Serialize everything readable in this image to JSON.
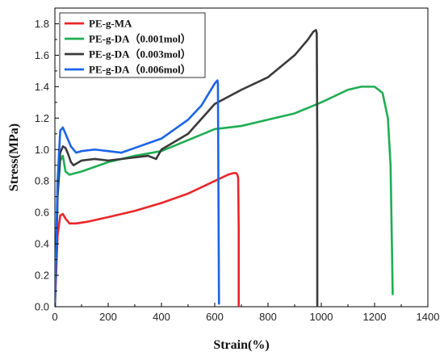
{
  "chart_data": {
    "type": "line",
    "xlabel": "Strain(%)",
    "ylabel": "Stress(MPa)",
    "xlim": [
      0,
      1400
    ],
    "ylim": [
      0.0,
      1.9
    ],
    "xticks": [
      0,
      200,
      400,
      600,
      800,
      1000,
      1200,
      1400
    ],
    "yticks": [
      0.0,
      0.2,
      0.4,
      0.6,
      0.8,
      1.0,
      1.2,
      1.4,
      1.6,
      1.8
    ],
    "grid": false,
    "legend_position": "top-left",
    "series": [
      {
        "name": "PE-g-MA",
        "color": "#e8262a",
        "x": [
          0,
          10,
          20,
          30,
          40,
          55,
          80,
          120,
          200,
          300,
          400,
          500,
          600,
          650,
          670,
          680,
          685,
          688,
          690,
          690
        ],
        "y": [
          0.0,
          0.45,
          0.58,
          0.59,
          0.56,
          0.53,
          0.53,
          0.54,
          0.57,
          0.61,
          0.66,
          0.72,
          0.8,
          0.84,
          0.85,
          0.85,
          0.84,
          0.82,
          0.5,
          0.0
        ]
      },
      {
        "name": "PE-g-DA（0.001mol）",
        "color": "#1fad52",
        "x": [
          0,
          10,
          20,
          30,
          40,
          55,
          100,
          200,
          300,
          400,
          500,
          600,
          700,
          800,
          900,
          1000,
          1100,
          1150,
          1200,
          1230,
          1250,
          1260,
          1265,
          1268
        ],
        "y": [
          0.0,
          0.7,
          0.93,
          0.96,
          0.86,
          0.84,
          0.86,
          0.92,
          0.96,
          0.99,
          1.06,
          1.13,
          1.15,
          1.19,
          1.23,
          1.3,
          1.38,
          1.4,
          1.4,
          1.36,
          1.2,
          0.9,
          0.4,
          0.08
        ]
      },
      {
        "name": "PE-g-DA（0.003mol）",
        "color": "#3a3a3a",
        "x": [
          0,
          10,
          20,
          30,
          40,
          50,
          60,
          70,
          100,
          150,
          200,
          300,
          350,
          380,
          400,
          500,
          600,
          700,
          800,
          900,
          950,
          970,
          980,
          983,
          985,
          985
        ],
        "y": [
          0.0,
          0.7,
          0.98,
          1.02,
          1.01,
          0.97,
          0.92,
          0.9,
          0.93,
          0.94,
          0.93,
          0.95,
          0.96,
          0.94,
          1.0,
          1.1,
          1.29,
          1.38,
          1.46,
          1.6,
          1.7,
          1.75,
          1.76,
          1.74,
          1.0,
          0.0
        ]
      },
      {
        "name": "PE-g-DA（0.006mol）",
        "color": "#1b64e8",
        "x": [
          0,
          10,
          20,
          30,
          40,
          60,
          80,
          100,
          150,
          200,
          250,
          300,
          400,
          500,
          550,
          600,
          610,
          612,
          614,
          616
        ],
        "y": [
          0.0,
          0.8,
          1.12,
          1.14,
          1.1,
          1.02,
          0.98,
          0.99,
          1.0,
          0.99,
          0.98,
          1.01,
          1.07,
          1.19,
          1.28,
          1.42,
          1.44,
          1.42,
          0.7,
          0.02
        ]
      }
    ]
  }
}
